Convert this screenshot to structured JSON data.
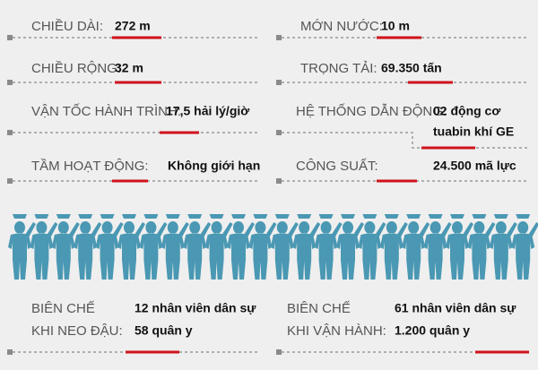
{
  "specs": {
    "left": [
      {
        "label": "CHIỀU DÀI:",
        "value": "272 m"
      },
      {
        "label": "CHIỀU RỘNG:",
        "value": "32 m"
      },
      {
        "label": "VẬN TỐC HÀNH TRÌNH:",
        "value": "17,5 hải lý/giờ"
      },
      {
        "label": "TẦM HOẠT ĐỘNG:",
        "value": "Không giới hạn"
      }
    ],
    "right": [
      {
        "label": "MỚN NƯỚC:",
        "value": "10 m"
      },
      {
        "label": "TRỌNG TẢI:",
        "value": "69.350 tấn"
      },
      {
        "label": "HỆ THỐNG DẪN ĐỘNG:",
        "value": [
          "02 động cơ",
          "tuabin khí GE"
        ]
      },
      {
        "label": "CÔNG SUẤT:",
        "value": "24.500 mã lực"
      }
    ]
  },
  "crew": {
    "left": {
      "label": [
        "BIÊN CHẾ",
        "KHI NEO ĐẬU:"
      ],
      "value": [
        "12 nhân viên dân sự",
        "58 quân y"
      ]
    },
    "right": {
      "label": [
        "BIÊN CHẾ",
        "KHI VẬN HÀNH:"
      ],
      "value": [
        "61 nhân viên dân sự",
        "1.200 quân y"
      ]
    }
  }
}
